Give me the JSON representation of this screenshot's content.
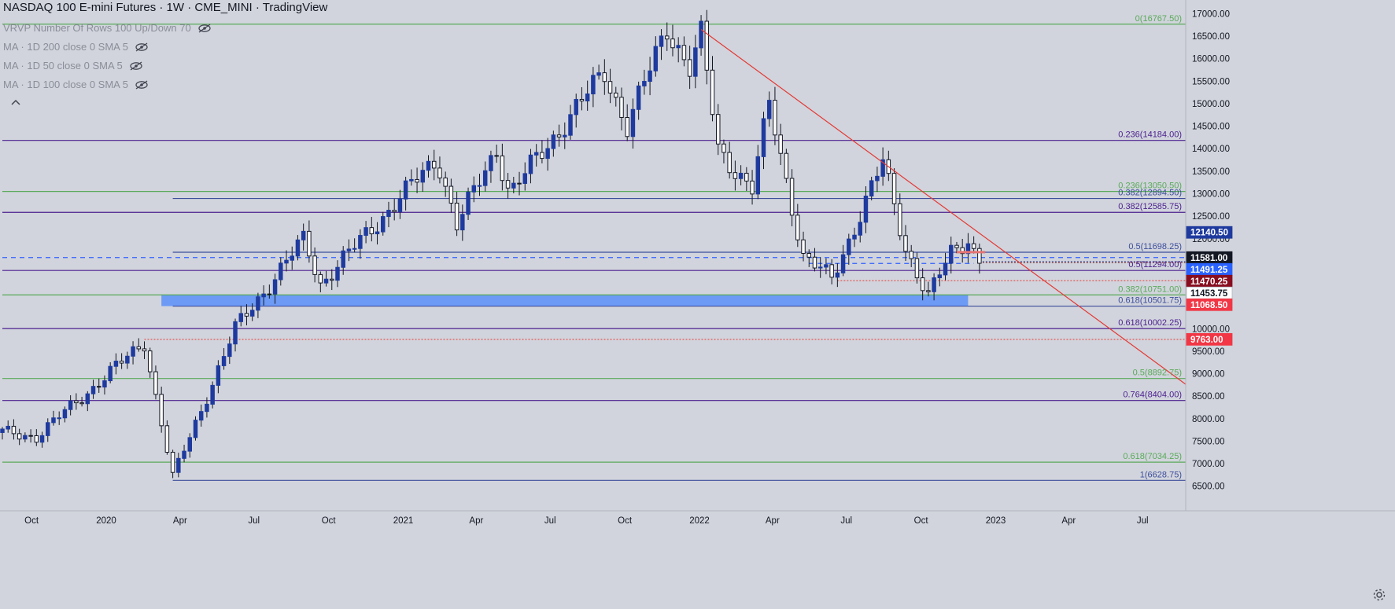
{
  "header": {
    "title": "NASDAQ 100 E-mini Futures · 1W · CME_MINI · TradingView",
    "indicators": [
      {
        "label": "VRVP Number Of Rows 100 Up/Down 70",
        "icon": "eye-off-icon"
      },
      {
        "label": "MA · 1D 200 close 0 SMA 5",
        "icon": "eye-off-icon"
      },
      {
        "label": "MA · 1D 50 close 0 SMA 5",
        "icon": "eye-off-icon"
      },
      {
        "label": "MA · 1D 100 close 0 SMA 5",
        "icon": "eye-off-icon"
      }
    ],
    "collapse_icon": "chevron-up-icon",
    "settings_icon": "gear-icon"
  },
  "colors": {
    "background": "#d1d4dc",
    "bull": "#1e3a9e",
    "bear": "#ffffff",
    "fib_purple": "#4b1f8f",
    "fib_blue": "#3d4d9c",
    "fib_green": "#5aaa5a",
    "trendline": "#e53935",
    "zone": "#5b8ff9"
  },
  "chart_data": {
    "type": "candlestick",
    "title": "NASDAQ 100 E-mini Futures · 1W · CME_MINI · TradingView",
    "x_range": [
      "2019-08-26",
      "2023-08-28"
    ],
    "ylim": [
      6250,
      17050
    ],
    "y_ticks": [
      "17000.00",
      "16500.00",
      "16000.00",
      "15500.00",
      "15000.00",
      "14500.00",
      "14000.00",
      "13500.00",
      "13000.00",
      "12500.00",
      "12000.00",
      "11500.00",
      "11000.00",
      "10500.00",
      "10000.00",
      "9500.00",
      "9000.00",
      "8500.00",
      "8000.00",
      "7500.00",
      "7000.00",
      "6500.00"
    ],
    "x_ticks": [
      {
        "date": "2019-10-01",
        "label": "Oct"
      },
      {
        "date": "2020-01-01",
        "label": "2020"
      },
      {
        "date": "2020-04-01",
        "label": "Apr"
      },
      {
        "date": "2020-07-01",
        "label": "Jul"
      },
      {
        "date": "2020-10-01",
        "label": "Oct"
      },
      {
        "date": "2021-01-01",
        "label": "2021"
      },
      {
        "date": "2021-04-01",
        "label": "Apr"
      },
      {
        "date": "2021-07-01",
        "label": "Jul"
      },
      {
        "date": "2021-10-01",
        "label": "Oct"
      },
      {
        "date": "2022-01-01",
        "label": "2022"
      },
      {
        "date": "2022-04-01",
        "label": "Apr"
      },
      {
        "date": "2022-07-01",
        "label": "Jul"
      },
      {
        "date": "2022-10-01",
        "label": "Oct"
      },
      {
        "date": "2023-01-01",
        "label": "2023"
      },
      {
        "date": "2023-04-01",
        "label": "Apr"
      },
      {
        "date": "2023-07-01",
        "label": "Jul"
      }
    ],
    "candle_anchors": [
      [
        "2019-08-26",
        7700
      ],
      [
        "2019-10-07",
        7600
      ],
      [
        "2019-12-16",
        8700
      ],
      [
        "2020-02-17",
        9700
      ],
      [
        "2020-03-23",
        6700
      ],
      [
        "2020-06-08",
        10000
      ],
      [
        "2020-09-01",
        12000
      ],
      [
        "2020-09-21",
        11000
      ],
      [
        "2021-02-12",
        13800
      ],
      [
        "2021-03-08",
        12300
      ],
      [
        "2021-04-26",
        14000
      ],
      [
        "2021-05-12",
        13000
      ],
      [
        "2021-09-06",
        15700
      ],
      [
        "2021-10-04",
        14500
      ],
      [
        "2021-11-22",
        16700
      ],
      [
        "2021-12-20",
        15800
      ],
      [
        "2022-01-03",
        16500
      ],
      [
        "2022-01-24",
        14000
      ],
      [
        "2022-03-07",
        13100
      ],
      [
        "2022-03-28",
        15000
      ],
      [
        "2022-05-09",
        11600
      ],
      [
        "2022-06-13",
        11100
      ],
      [
        "2022-08-15",
        13700
      ],
      [
        "2022-09-12",
        11800
      ],
      [
        "2022-10-10",
        10700
      ],
      [
        "2022-11-07",
        11700
      ],
      [
        "2022-11-28",
        12000
      ],
      [
        "2022-12-12",
        11454
      ]
    ],
    "fib_levels": [
      {
        "label": "0(16767.50)",
        "value": 16767.5,
        "color": "#5aaa5a",
        "x_start": "2019-08-26",
        "x_end": "2023-08-28"
      },
      {
        "label": "0.236(14184.00)",
        "value": 14184.0,
        "color": "#4b1f8f",
        "x_start": "2019-08-26",
        "x_end": "2023-08-28"
      },
      {
        "label": "0.236(13050.50)",
        "value": 13050.5,
        "color": "#5aaa5a",
        "x_start": "2019-08-26",
        "x_end": "2023-08-28"
      },
      {
        "label": "0.382(12894.50)",
        "value": 12894.5,
        "color": "#3d4d9c",
        "x_start": "2020-03-23",
        "x_end": "2023-08-28"
      },
      {
        "label": "0.382(12585.75)",
        "value": 12585.75,
        "color": "#4b1f8f",
        "x_start": "2019-08-26",
        "x_end": "2023-08-28"
      },
      {
        "label": "0.5(11698.25)",
        "value": 11698.25,
        "color": "#3d4d9c",
        "x_start": "2020-03-23",
        "x_end": "2023-08-28"
      },
      {
        "label": "0.5(11294.00)",
        "value": 11294.0,
        "color": "#4b1f8f",
        "x_start": "2019-08-26",
        "x_end": "2023-08-28"
      },
      {
        "label": "0.382(10751.00)",
        "value": 10751.0,
        "color": "#5aaa5a",
        "x_start": "2019-08-26",
        "x_end": "2023-08-28"
      },
      {
        "label": "0.618(10501.75)",
        "value": 10501.75,
        "color": "#3d4d9c",
        "x_start": "2020-03-23",
        "x_end": "2023-08-28"
      },
      {
        "label": "0.618(10002.25)",
        "value": 10002.25,
        "color": "#4b1f8f",
        "x_start": "2019-08-26",
        "x_end": "2023-08-28"
      },
      {
        "label": "0.5(8892.75)",
        "value": 8892.75,
        "color": "#5aaa5a",
        "x_start": "2019-08-26",
        "x_end": "2023-08-28"
      },
      {
        "label": "0.764(8404.00)",
        "value": 8404.0,
        "color": "#4b1f8f",
        "x_start": "2019-08-26",
        "x_end": "2023-08-28"
      },
      {
        "label": "0.618(7034.25)",
        "value": 7034.25,
        "color": "#5aaa5a",
        "x_start": "2019-08-26",
        "x_end": "2023-08-28"
      },
      {
        "label": "1(6628.75)",
        "value": 6628.75,
        "color": "#3d4d9c",
        "x_start": "2020-03-23",
        "x_end": "2023-08-28"
      }
    ],
    "dashed_levels": [
      {
        "value": 11581.0,
        "color": "#3060ff",
        "x_start": "2019-08-26",
        "x_end": "2023-08-28"
      },
      {
        "value": 11450,
        "color": "#3060ff",
        "x_start": "2022-05-16",
        "x_end": "2022-12-05"
      }
    ],
    "dotted_levels": [
      {
        "value": 9763.0,
        "color": "#e53935",
        "x_start": "2020-02-17",
        "x_end": "2023-08-28"
      },
      {
        "value": 11068.5,
        "color": "#e53935",
        "x_start": "2022-06-20",
        "x_end": "2023-08-28"
      },
      {
        "value": 11470.25,
        "color": "#7a2020",
        "x_start": "2022-12-12",
        "x_end": "2023-08-28"
      },
      {
        "value": 11491.25,
        "color": "#3d4d9c",
        "x_start": "2022-12-12",
        "x_end": "2023-08-28"
      }
    ],
    "support_zone": {
      "low": 10501.75,
      "high": 10751.0,
      "x_start": "2020-03-09",
      "x_end": "2022-11-28",
      "color": "#5b8ff9"
    },
    "trendline": {
      "start": [
        "2022-01-03",
        16650
      ],
      "end": [
        "2023-08-28",
        8700
      ],
      "color": "#e53935"
    },
    "resistance_marker": {
      "value": 11700,
      "x_start": "2022-11-14",
      "x_end": "2022-12-19",
      "color": "#e57373"
    },
    "price_labels": [
      {
        "text": "12140.50",
        "value": 12140.5,
        "bg": "#1e3a9e",
        "fg": "#ffffff"
      },
      {
        "text": "11581.00",
        "value": 11581.0,
        "bg": "#131722",
        "fg": "#ffffff"
      },
      {
        "text": "11491.25",
        "value": 11491.25,
        "bg": "#2962ff",
        "fg": "#ffffff"
      },
      {
        "text": "11470.25",
        "value": 11470.25,
        "bg": "#880e1f",
        "fg": "#ffffff"
      },
      {
        "text": "11453.75",
        "value": 11453.75,
        "bg": "#ffffff",
        "fg": "#131722"
      },
      {
        "text": "11068.50",
        "value": 11068.5,
        "bg": "#f23645",
        "fg": "#ffffff"
      },
      {
        "text": "9763.00",
        "value": 9763.0,
        "bg": "#f23645",
        "fg": "#ffffff"
      }
    ]
  }
}
